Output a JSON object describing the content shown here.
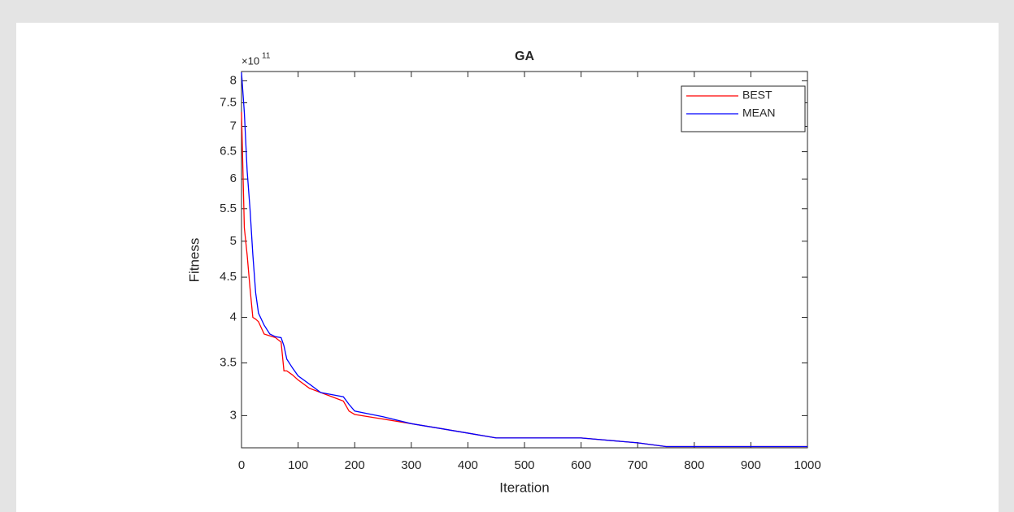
{
  "chart_data": {
    "type": "line",
    "title": "GA",
    "xlabel": "Iteration",
    "ylabel": "Fitness",
    "y_multiplier": {
      "base": "×10",
      "exponent": "11"
    },
    "x": [
      0,
      5,
      10,
      15,
      20,
      25,
      30,
      40,
      50,
      60,
      70,
      75,
      80,
      90,
      100,
      120,
      140,
      160,
      180,
      190,
      200,
      250,
      300,
      350,
      400,
      450,
      500,
      600,
      700,
      750,
      800,
      900,
      1000
    ],
    "series": [
      {
        "name": "BEST",
        "color": "#ff0000",
        "values": [
          7.3,
          5.2,
          4.8,
          4.36,
          4.0,
          3.98,
          3.95,
          3.81,
          3.79,
          3.77,
          3.72,
          3.42,
          3.42,
          3.38,
          3.33,
          3.25,
          3.21,
          3.17,
          3.13,
          3.04,
          3.01,
          2.97,
          2.93,
          2.89,
          2.85,
          2.81,
          2.81,
          2.81,
          2.77,
          2.74,
          2.74,
          2.74,
          2.74
        ]
      },
      {
        "name": "MEAN",
        "color": "#0000ff",
        "values": [
          8.2,
          7.29,
          6.14,
          5.5,
          4.81,
          4.3,
          4.05,
          3.91,
          3.81,
          3.78,
          3.77,
          3.68,
          3.54,
          3.45,
          3.37,
          3.29,
          3.21,
          3.19,
          3.17,
          3.1,
          3.04,
          2.99,
          2.93,
          2.89,
          2.85,
          2.81,
          2.81,
          2.81,
          2.77,
          2.74,
          2.74,
          2.74,
          2.74
        ]
      }
    ],
    "xlim": [
      0,
      1000
    ],
    "xticks": [
      0,
      100,
      200,
      300,
      400,
      500,
      600,
      700,
      800,
      900,
      1000
    ],
    "ylim": [
      2.73,
      8.22
    ],
    "yticks": [
      3,
      3.5,
      4,
      4.5,
      5,
      5.5,
      6,
      6.5,
      7,
      7.5,
      8
    ],
    "log_y": true,
    "grid": false,
    "legend": "upper right"
  }
}
